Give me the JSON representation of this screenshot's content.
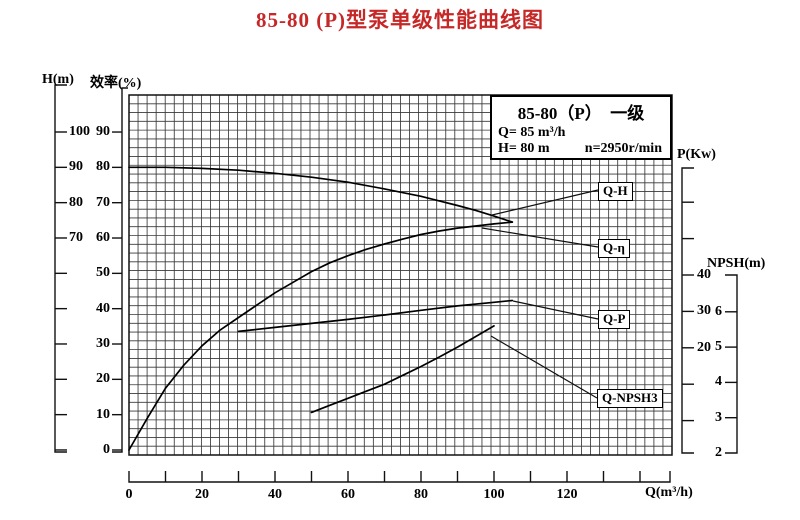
{
  "title": "85-80 (P)型泵单级性能曲线图",
  "title_color": "#c62828",
  "info_box": {
    "model": "85-80（P）　一级",
    "flow": "Q= 85 m³/h",
    "head": "H= 80 m",
    "speed": "n=2950r/min"
  },
  "chart_data": {
    "type": "line",
    "title": "85-80 (P)型泵单级性能曲线图",
    "grid": "fine 2.5-unit cells, on",
    "x_axis": {
      "label": "Q(m³/h)",
      "range": [
        0,
        148
      ],
      "labeled_ticks": [
        0,
        20,
        40,
        60,
        80,
        100,
        120
      ],
      "minor_tick_step": 10
    },
    "y_axes": [
      {
        "label": "H(m)",
        "range": [
          10,
          100
        ],
        "labeled_ticks": [
          100,
          90,
          80,
          70
        ],
        "unlabeled_ticks": [
          60,
          50,
          40,
          30,
          20,
          10
        ]
      },
      {
        "label": "效率(%)",
        "range": [
          0,
          90
        ],
        "labeled_ticks": [
          90,
          80,
          70,
          60,
          50,
          40,
          30,
          20,
          10,
          0
        ]
      },
      {
        "label": "P(Kw)",
        "range": [
          0,
          60
        ],
        "labeled_ticks": [
          40,
          30,
          20
        ],
        "unlabeled_ticks": [
          60,
          50,
          10,
          0
        ]
      },
      {
        "label": "NPSH(m)",
        "range": [
          2,
          6
        ],
        "labeled_ticks": [
          6,
          5,
          4,
          3,
          2
        ]
      }
    ],
    "series": [
      {
        "name": "Q-H",
        "y_axis": "H(m)",
        "x": [
          0,
          10,
          20,
          30,
          40,
          50,
          60,
          70,
          80,
          85,
          90,
          95,
          100,
          105
        ],
        "y": [
          90,
          90,
          89.7,
          89.2,
          88.3,
          87.2,
          85.8,
          83.9,
          81.8,
          80.5,
          79.2,
          77.8,
          76.2,
          74.5
        ]
      },
      {
        "name": "Q-η",
        "y_axis": "效率(%)",
        "x": [
          0,
          5,
          10,
          15,
          20,
          25,
          30,
          35,
          40,
          45,
          50,
          55,
          60,
          65,
          70,
          75,
          80,
          85,
          90,
          95,
          100,
          105
        ],
        "y": [
          0,
          9,
          17.5,
          24,
          29.5,
          34,
          37.5,
          41,
          44.5,
          47.5,
          50.5,
          53,
          55,
          56.8,
          58.3,
          59.7,
          61,
          62,
          62.8,
          63.4,
          64,
          64.5
        ]
      },
      {
        "name": "Q-P",
        "y_axis": "P(Kw)",
        "x": [
          30,
          40,
          50,
          60,
          70,
          80,
          90,
          100,
          105
        ],
        "y": [
          24.5,
          25.6,
          26.7,
          27.8,
          29,
          30.3,
          31.5,
          32.5,
          33
        ]
      },
      {
        "name": "Q-NPSH3",
        "y_axis": "NPSH(m)",
        "x": [
          50,
          55,
          60,
          65,
          70,
          75,
          80,
          85,
          90,
          95,
          100
        ],
        "y": [
          3.15,
          3.35,
          3.55,
          3.75,
          3.95,
          4.2,
          4.45,
          4.72,
          5.0,
          5.3,
          5.6
        ]
      }
    ],
    "rated_point": {
      "Q_m3h": 85,
      "H_m": 80,
      "n_rpm": 2950,
      "stage": "一级",
      "model": "85-80(P)"
    },
    "legend_position": "inside top-right box"
  }
}
